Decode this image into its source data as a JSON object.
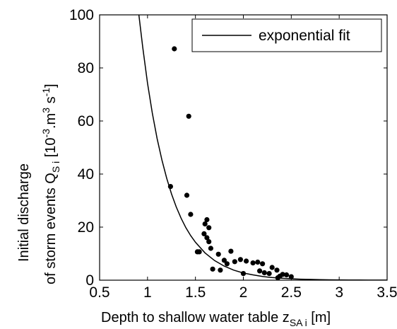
{
  "chart_data": {
    "type": "scatter",
    "xlabel": {
      "main": "Depth to shallow water table z",
      "sub": "SA i",
      "unit": " [m]"
    },
    "ylabel": {
      "line1": "Initial discharge",
      "line2_main": "of storm events Q",
      "line2_sub": "S i",
      "line2_unit_open": "  [10",
      "line2_exp1": "-3",
      "line2_unit_mid": ".m",
      "line2_exp2": "3",
      "line2_unit_s": " s",
      "line2_exp3": "-1",
      "line2_unit_close": "]"
    },
    "xlim": [
      0.5,
      3.5
    ],
    "ylim": [
      0,
      100
    ],
    "xticks": [
      "0.5",
      "1",
      "1.5",
      "2",
      "2.5",
      "3",
      "3.5"
    ],
    "yticks": [
      "0",
      "20",
      "40",
      "60",
      "80",
      "100"
    ],
    "grid": false,
    "legend_position": "top-right",
    "series": [
      {
        "name": "exponential fit",
        "type": "line",
        "color": "#000000",
        "x": [
          0.91,
          0.95,
          1.0,
          1.05,
          1.1,
          1.15,
          1.2,
          1.25,
          1.3,
          1.35,
          1.4,
          1.45,
          1.5,
          1.6,
          1.7,
          1.8,
          1.9,
          2.0,
          2.1,
          2.2,
          2.3,
          2.4,
          2.5,
          2.6,
          2.7,
          2.8,
          2.9,
          3.0,
          3.1,
          3.2,
          3.3,
          3.4,
          3.5
        ],
        "y": [
          100,
          87.7,
          74.3,
          63.0,
          53.4,
          45.3,
          38.4,
          32.5,
          27.6,
          23.4,
          19.8,
          16.8,
          14.3,
          10.3,
          7.4,
          5.3,
          3.8,
          2.7,
          2.0,
          1.4,
          1.0,
          0.74,
          0.53,
          0.38,
          0.28,
          0.2,
          0.14,
          0.1,
          0.07,
          0.05,
          0.04,
          0.03,
          0.02
        ]
      },
      {
        "name": "",
        "type": "scatter",
        "color": "#000000",
        "points": [
          [
            1.28,
            87.2
          ],
          [
            1.43,
            61.8
          ],
          [
            1.24,
            35.3
          ],
          [
            1.41,
            32.0
          ],
          [
            1.45,
            24.8
          ],
          [
            1.62,
            22.8
          ],
          [
            1.6,
            21.2
          ],
          [
            1.64,
            19.8
          ],
          [
            1.59,
            17.5
          ],
          [
            1.62,
            16.0
          ],
          [
            1.64,
            14.5
          ],
          [
            1.66,
            12.0
          ],
          [
            1.52,
            10.7
          ],
          [
            1.54,
            10.7
          ],
          [
            1.87,
            10.9
          ],
          [
            1.74,
            9.8
          ],
          [
            1.8,
            7.5
          ],
          [
            1.83,
            6.2
          ],
          [
            1.91,
            7.0
          ],
          [
            1.97,
            7.8
          ],
          [
            2.03,
            7.2
          ],
          [
            2.1,
            6.5
          ],
          [
            2.15,
            6.8
          ],
          [
            2.2,
            6.2
          ],
          [
            2.3,
            4.8
          ],
          [
            2.35,
            3.8
          ],
          [
            2.17,
            3.5
          ],
          [
            2.22,
            2.8
          ],
          [
            2.27,
            2.5
          ],
          [
            2.41,
            2.2
          ],
          [
            2.0,
            2.5
          ],
          [
            2.38,
            1.5
          ],
          [
            2.45,
            2.0
          ],
          [
            2.5,
            1.3
          ],
          [
            2.36,
            0.9
          ],
          [
            1.68,
            4.2
          ],
          [
            1.76,
            3.8
          ]
        ]
      }
    ]
  }
}
